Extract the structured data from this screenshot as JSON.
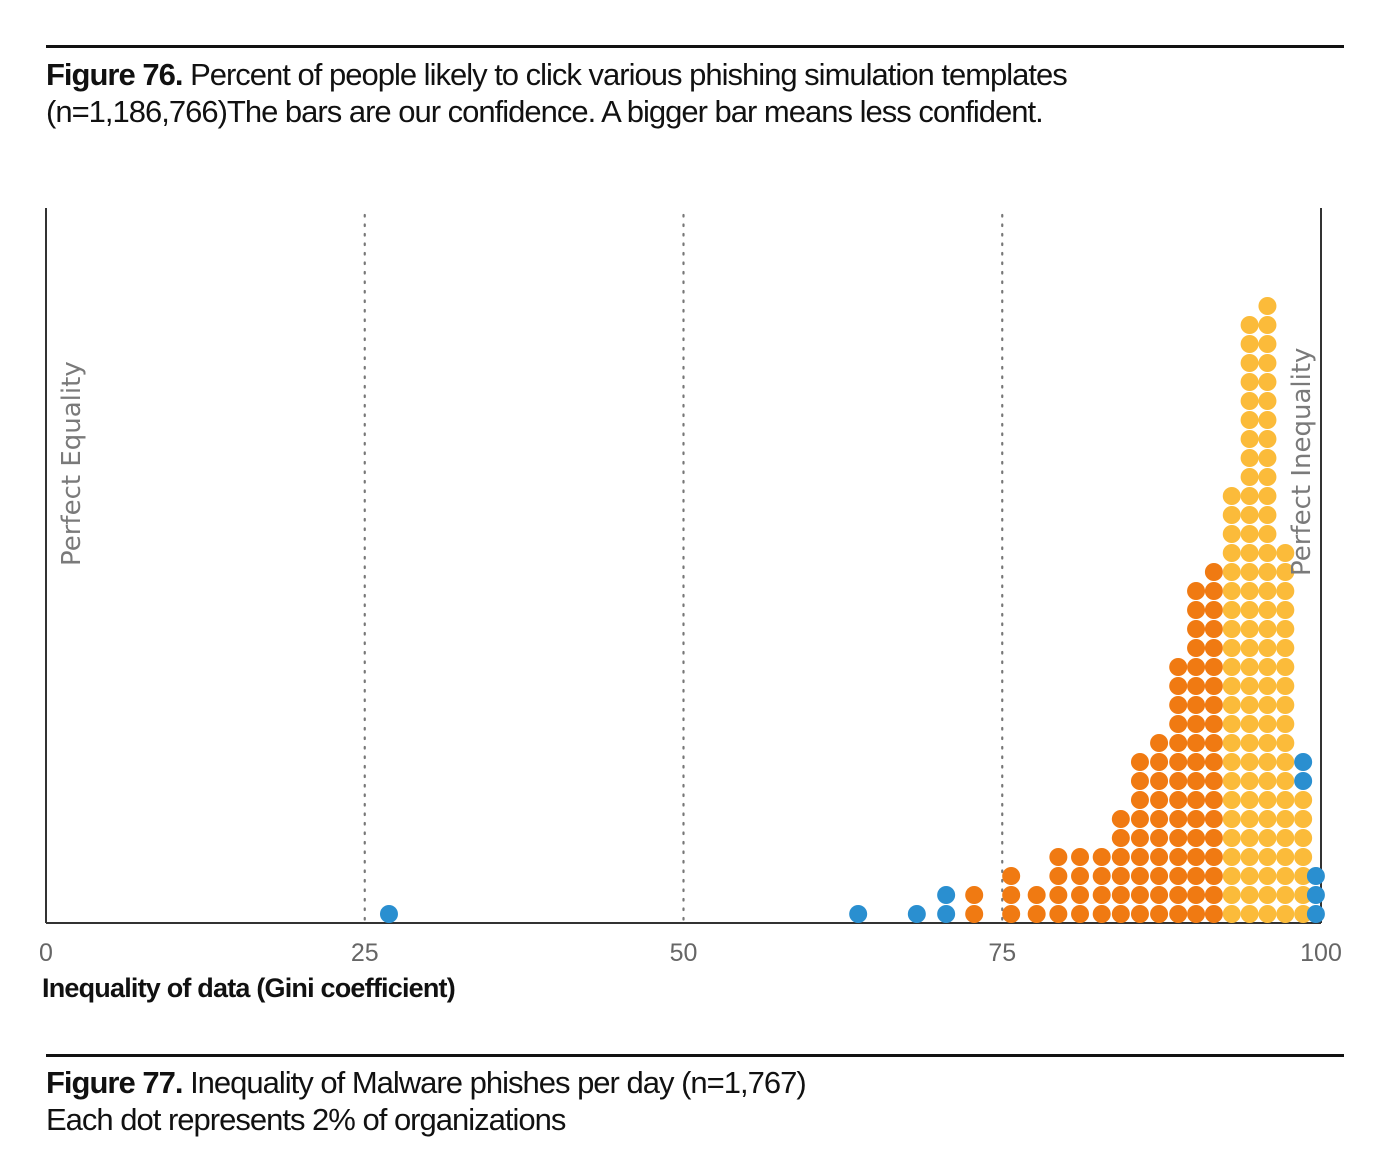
{
  "fig76": {
    "label": "Figure 76.",
    "line1": "Percent of people likely to click various phishing simulation templates",
    "line2": "(n=1,186,766)The bars are our confidence. A bigger bar means less confident."
  },
  "fig77": {
    "label": "Figure 77.",
    "line1": "Inequality of Malware phishes per day (n=1,767)",
    "line2": "Each dot represents 2% of organizations"
  },
  "chart_data": {
    "type": "scatter",
    "subtype": "dot-histogram",
    "xlabel": "Inequality of data (Gini coefficient)",
    "xlim": [
      0,
      100
    ],
    "xticks": [
      0,
      25,
      50,
      75,
      100
    ],
    "grid": "vertical dotted at 25, 50, 75",
    "annotations": [
      "Perfect Equality",
      "Perfect Inequality"
    ],
    "dot_unit": "2% of organizations",
    "colors": {
      "blue": "#2a8fd0",
      "orange": "#f07a12",
      "yellow": "#fbbb3a"
    },
    "columns": [
      {
        "x": 26.9,
        "count": 1,
        "color": "blue"
      },
      {
        "x": 63.7,
        "count": 1,
        "color": "blue"
      },
      {
        "x": 68.3,
        "count": 1,
        "color": "blue"
      },
      {
        "x": 70.6,
        "count": 2,
        "color": "blue"
      },
      {
        "x": 72.8,
        "count": 2,
        "color": "orange"
      },
      {
        "x": 75.7,
        "count": 3,
        "color": "orange"
      },
      {
        "x": 77.7,
        "count": 2,
        "color": "orange"
      },
      {
        "x": 79.4,
        "count": 4,
        "color": "orange"
      },
      {
        "x": 81.1,
        "count": 4,
        "color": "orange"
      },
      {
        "x": 82.8,
        "count": 4,
        "color": "orange"
      },
      {
        "x": 84.3,
        "count": 6,
        "color": "orange"
      },
      {
        "x": 85.8,
        "count": 9,
        "color": "orange"
      },
      {
        "x": 87.3,
        "count": 10,
        "color": "orange"
      },
      {
        "x": 88.8,
        "count": 14,
        "color": "orange"
      },
      {
        "x": 90.2,
        "count": 18,
        "color": "orange"
      },
      {
        "x": 91.6,
        "count": 19,
        "color": "orange"
      },
      {
        "x": 93.0,
        "count": 23,
        "color": "yellow"
      },
      {
        "x": 94.4,
        "count": 32,
        "color": "yellow"
      },
      {
        "x": 95.8,
        "count": 33,
        "color": "yellow"
      },
      {
        "x": 97.2,
        "count": 20,
        "color": "yellow"
      },
      {
        "x": 98.6,
        "count": 7,
        "color": "yellow",
        "extra_blue": 2
      },
      {
        "x": 99.6,
        "count": 3,
        "color": "blue"
      }
    ]
  }
}
